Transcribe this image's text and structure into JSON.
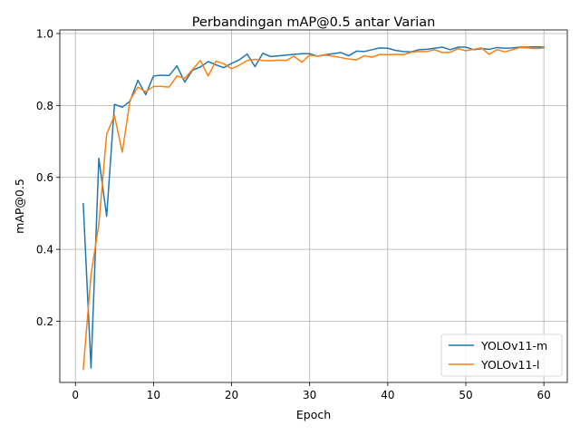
{
  "chart_data": {
    "type": "line",
    "title": "Perbandingan mAP@0.5 antar Varian",
    "xlabel": "Epoch",
    "ylabel": "mAP@0.5",
    "xlim": [
      -2,
      63
    ],
    "ylim": [
      0.03,
      1.01
    ],
    "xticks": [
      0,
      10,
      20,
      30,
      40,
      50,
      60
    ],
    "yticks": [
      0.2,
      0.4,
      0.6,
      0.8,
      1.0
    ],
    "xtick_labels": [
      "0",
      "10",
      "20",
      "30",
      "40",
      "50",
      "60"
    ],
    "ytick_labels": [
      "0.2",
      "0.4",
      "0.6",
      "0.8",
      "1.0"
    ],
    "grid": true,
    "legend_position": "bottom-right",
    "x": [
      1,
      2,
      3,
      4,
      5,
      6,
      7,
      8,
      9,
      10,
      11,
      12,
      13,
      14,
      15,
      16,
      17,
      18,
      19,
      20,
      21,
      22,
      23,
      24,
      25,
      26,
      27,
      28,
      29,
      30,
      31,
      32,
      33,
      34,
      35,
      36,
      37,
      38,
      39,
      40,
      41,
      42,
      43,
      44,
      45,
      46,
      47,
      48,
      49,
      50,
      51,
      52,
      53,
      54,
      55,
      56,
      57,
      58,
      59,
      60
    ],
    "series": [
      {
        "name": "YOLOv11-m",
        "color": "#1f77b4",
        "values": [
          0.527,
          0.07,
          0.653,
          0.492,
          0.803,
          0.795,
          0.812,
          0.87,
          0.83,
          0.882,
          0.884,
          0.883,
          0.91,
          0.865,
          0.898,
          0.907,
          0.922,
          0.913,
          0.905,
          0.917,
          0.927,
          0.943,
          0.908,
          0.945,
          0.936,
          0.938,
          0.94,
          0.942,
          0.944,
          0.944,
          0.937,
          0.941,
          0.944,
          0.947,
          0.938,
          0.951,
          0.95,
          0.955,
          0.96,
          0.959,
          0.953,
          0.95,
          0.949,
          0.955,
          0.956,
          0.959,
          0.962,
          0.955,
          0.962,
          0.962,
          0.955,
          0.958,
          0.956,
          0.961,
          0.959,
          0.96,
          0.962,
          0.962,
          0.963,
          0.962
        ]
      },
      {
        "name": "YOLOv11-l",
        "color": "#ff7f0e",
        "values": [
          0.066,
          0.33,
          0.47,
          0.72,
          0.772,
          0.67,
          0.815,
          0.851,
          0.838,
          0.853,
          0.853,
          0.851,
          0.882,
          0.875,
          0.9,
          0.925,
          0.882,
          0.923,
          0.916,
          0.902,
          0.912,
          0.925,
          0.928,
          0.925,
          0.924,
          0.926,
          0.925,
          0.937,
          0.92,
          0.94,
          0.937,
          0.94,
          0.937,
          0.933,
          0.929,
          0.927,
          0.938,
          0.934,
          0.942,
          0.941,
          0.942,
          0.941,
          0.948,
          0.95,
          0.95,
          0.955,
          0.947,
          0.948,
          0.958,
          0.952,
          0.956,
          0.96,
          0.942,
          0.955,
          0.949,
          0.955,
          0.961,
          0.96,
          0.958,
          0.96
        ]
      }
    ]
  }
}
